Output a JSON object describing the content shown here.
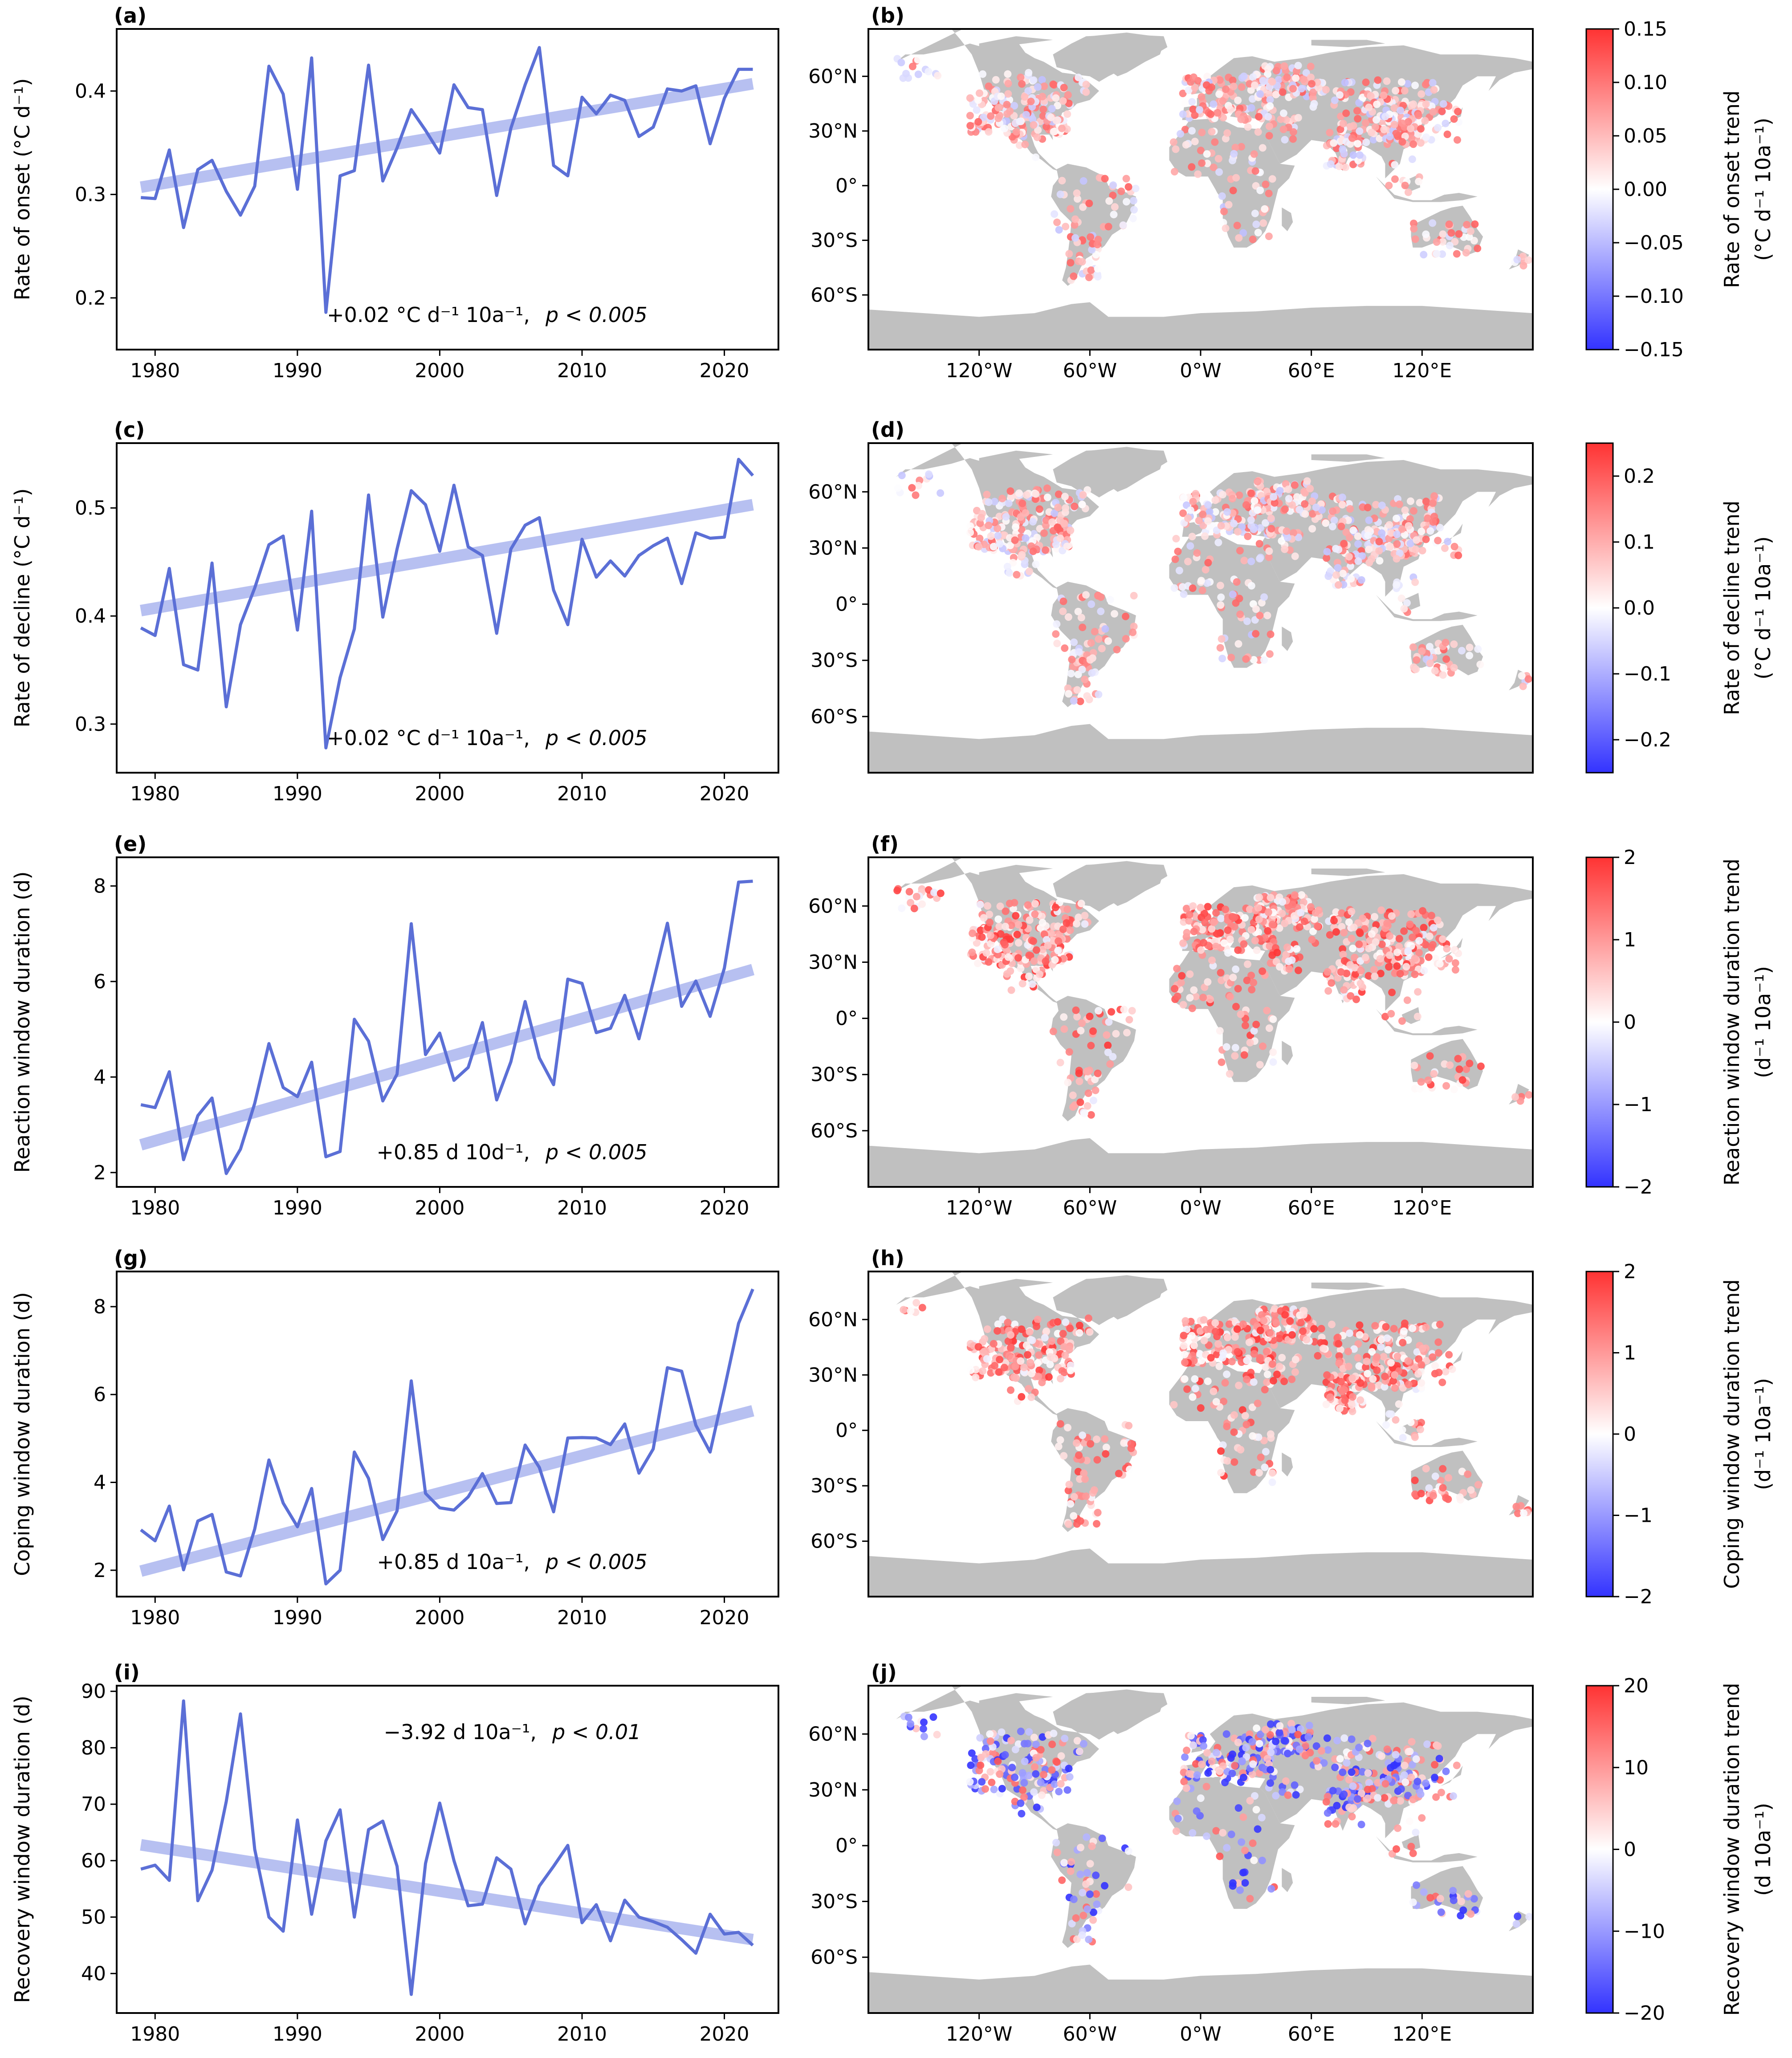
{
  "common": {
    "years": [
      1979,
      1980,
      1981,
      1982,
      1983,
      1984,
      1985,
      1986,
      1987,
      1988,
      1989,
      1990,
      1991,
      1992,
      1993,
      1994,
      1995,
      1996,
      1997,
      1998,
      1999,
      2000,
      2001,
      2002,
      2003,
      2004,
      2005,
      2006,
      2007,
      2008,
      2009,
      2010,
      2011,
      2012,
      2013,
      2014,
      2015,
      2016,
      2017,
      2018,
      2019,
      2020,
      2021,
      2022
    ],
    "x_ticks": [
      1980,
      1990,
      2000,
      2010,
      2020
    ],
    "lat_ticks": [
      "60°N",
      "30°N",
      "0°",
      "30°S",
      "60°S"
    ],
    "lon_ticks": [
      "120°W",
      "60°W",
      "0°W",
      "60°E",
      "120°E"
    ],
    "colors": {
      "series": "#5b6fd6",
      "trend": "#b3bdf0",
      "land": "#c0c0c0",
      "cmap_low": "#3333ff",
      "cmap_mid": "#ffffff",
      "cmap_high": "#ff3333"
    }
  },
  "chart_data": [
    {
      "type": "line",
      "panel": "(a)",
      "ylabel": "Rate of onset (°C d⁻¹)",
      "ylim": [
        0.15,
        0.46
      ],
      "y_ticks": [
        0.2,
        0.3,
        0.4
      ],
      "values": [
        0.297,
        0.296,
        0.343,
        0.268,
        0.324,
        0.333,
        0.303,
        0.28,
        0.308,
        0.424,
        0.397,
        0.305,
        0.432,
        0.186,
        0.318,
        0.323,
        0.425,
        0.313,
        0.345,
        0.382,
        0.362,
        0.34,
        0.406,
        0.384,
        0.382,
        0.299,
        0.364,
        0.406,
        0.442,
        0.328,
        0.318,
        0.394,
        0.378,
        0.396,
        0.391,
        0.356,
        0.365,
        0.402,
        0.4,
        0.405,
        0.349,
        0.393,
        0.421,
        0.421
      ],
      "trend": [
        0.307,
        0.407
      ],
      "annotation": {
        "value": "+0.02 °C d⁻¹ 10a⁻¹,",
        "sig": "p < 0.005"
      }
    },
    {
      "type": "line",
      "panel": "(c)",
      "ylabel": "Rate of decline (°C d⁻¹)",
      "ylim": [
        0.255,
        0.56
      ],
      "y_ticks": [
        0.3,
        0.4,
        0.5
      ],
      "values": [
        0.389,
        0.382,
        0.444,
        0.355,
        0.35,
        0.449,
        0.316,
        0.392,
        0.426,
        0.466,
        0.474,
        0.387,
        0.497,
        0.278,
        0.343,
        0.388,
        0.512,
        0.399,
        0.462,
        0.516,
        0.503,
        0.46,
        0.521,
        0.464,
        0.456,
        0.384,
        0.462,
        0.484,
        0.491,
        0.424,
        0.392,
        0.471,
        0.436,
        0.451,
        0.437,
        0.456,
        0.465,
        0.472,
        0.43,
        0.477,
        0.472,
        0.473,
        0.545,
        0.53
      ],
      "trend": [
        0.405,
        0.503
      ],
      "annotation": {
        "value": "+0.02 °C d⁻¹ 10a⁻¹,",
        "sig": "p < 0.005"
      }
    },
    {
      "type": "line",
      "panel": "(e)",
      "ylabel": "Reaction window duration (d)",
      "ylim": [
        1.7,
        8.6
      ],
      "y_ticks": [
        2,
        4,
        6,
        8
      ],
      "values": [
        3.42,
        3.36,
        4.11,
        2.27,
        3.19,
        3.56,
        1.98,
        2.49,
        3.45,
        4.7,
        3.78,
        3.59,
        4.31,
        2.33,
        2.44,
        5.21,
        4.75,
        3.5,
        4.06,
        7.21,
        4.47,
        4.92,
        3.93,
        4.2,
        5.14,
        3.52,
        4.32,
        5.58,
        4.4,
        3.84,
        6.05,
        5.96,
        4.93,
        5.02,
        5.71,
        4.8,
        5.99,
        7.22,
        5.48,
        6.01,
        5.27,
        6.28,
        8.08,
        8.1
      ],
      "trend": [
        2.58,
        6.25
      ],
      "annotation": {
        "value": "+0.85 d 10d⁻¹,",
        "sig": "p < 0.005"
      }
    },
    {
      "type": "line",
      "panel": "(g)",
      "ylabel": "Coping window duration (d)",
      "ylim": [
        1.4,
        8.8
      ],
      "y_ticks": [
        2,
        4,
        6,
        8
      ],
      "values": [
        2.92,
        2.67,
        3.46,
        2.01,
        3.12,
        3.27,
        1.96,
        1.87,
        2.94,
        4.51,
        3.53,
        2.99,
        3.86,
        1.69,
        2.0,
        4.69,
        4.09,
        2.7,
        3.35,
        6.31,
        3.75,
        3.42,
        3.37,
        3.67,
        4.2,
        3.52,
        3.54,
        4.85,
        4.34,
        3.33,
        5.01,
        5.02,
        5.01,
        4.86,
        5.33,
        4.21,
        4.76,
        6.61,
        6.53,
        5.3,
        4.69,
        6.13,
        7.62,
        8.4
      ],
      "trend": [
        1.98,
        5.63
      ],
      "annotation": {
        "value": "+0.85 d 10a⁻¹,",
        "sig": "p < 0.005"
      }
    },
    {
      "type": "line",
      "panel": "(i)",
      "ylabel": "Recovery window duration (d)",
      "ylim": [
        33,
        91
      ],
      "y_ticks": [
        40,
        50,
        60,
        70,
        80,
        90
      ],
      "values": [
        58.5,
        59.2,
        56.5,
        88.3,
        52.9,
        58.3,
        70.5,
        86.0,
        62.0,
        50.0,
        47.5,
        67.2,
        50.5,
        63.5,
        69.0,
        50.0,
        65.5,
        67.0,
        59.0,
        36.3,
        59.5,
        70.2,
        60.0,
        52.0,
        52.3,
        60.5,
        58.5,
        48.8,
        55.5,
        59.0,
        62.7,
        49.0,
        52.2,
        45.8,
        53.0,
        50.0,
        49.2,
        48.2,
        46.0,
        43.6,
        50.5,
        47.0,
        47.3,
        45.0
      ],
      "trend": [
        62.8,
        46.0
      ],
      "annotation": {
        "value": "−3.92 d 10a⁻¹,",
        "sig": "p < 0.01"
      }
    }
  ],
  "maps": [
    {
      "panel": "(b)",
      "cbar_label_1": "Rate of onset trend",
      "cbar_label_2": "(°C d⁻¹ 10a⁻¹)",
      "vmin": -0.15,
      "vmax": 0.15,
      "cbar_ticks": [
        "0.15",
        "0.10",
        "0.05",
        "0.00",
        "−0.05",
        "−0.10",
        "−0.15"
      ],
      "show_lon": true
    },
    {
      "panel": "(d)",
      "cbar_label_1": "Rate of decline trend",
      "cbar_label_2": "(°C d⁻¹ 10a⁻¹)",
      "vmin": -0.25,
      "vmax": 0.25,
      "cbar_ticks": [
        "0.2",
        "0.1",
        "0.0",
        "−0.1",
        "−0.2"
      ],
      "show_lon": false
    },
    {
      "panel": "(f)",
      "cbar_label_1": "Reaction window duration trend",
      "cbar_label_2": "(d⁻¹ 10a⁻¹)",
      "vmin": -2,
      "vmax": 2,
      "cbar_ticks": [
        "2",
        "1",
        "0",
        "−1",
        "−2"
      ],
      "show_lon": true
    },
    {
      "panel": "(h)",
      "cbar_label_1": "Coping window duration trend",
      "cbar_label_2": "(d⁻¹ 10a⁻¹)",
      "vmin": -2,
      "vmax": 2,
      "cbar_ticks": [
        "2",
        "1",
        "0",
        "−1",
        "−2"
      ],
      "show_lon": false
    },
    {
      "panel": "(j)",
      "cbar_label_1": "Recovery window duration trend",
      "cbar_label_2": "(d 10a⁻¹)",
      "vmin": -20,
      "vmax": 20,
      "cbar_ticks": [
        "20",
        "10",
        "0",
        "−10",
        "−20"
      ],
      "show_lon": true
    }
  ]
}
